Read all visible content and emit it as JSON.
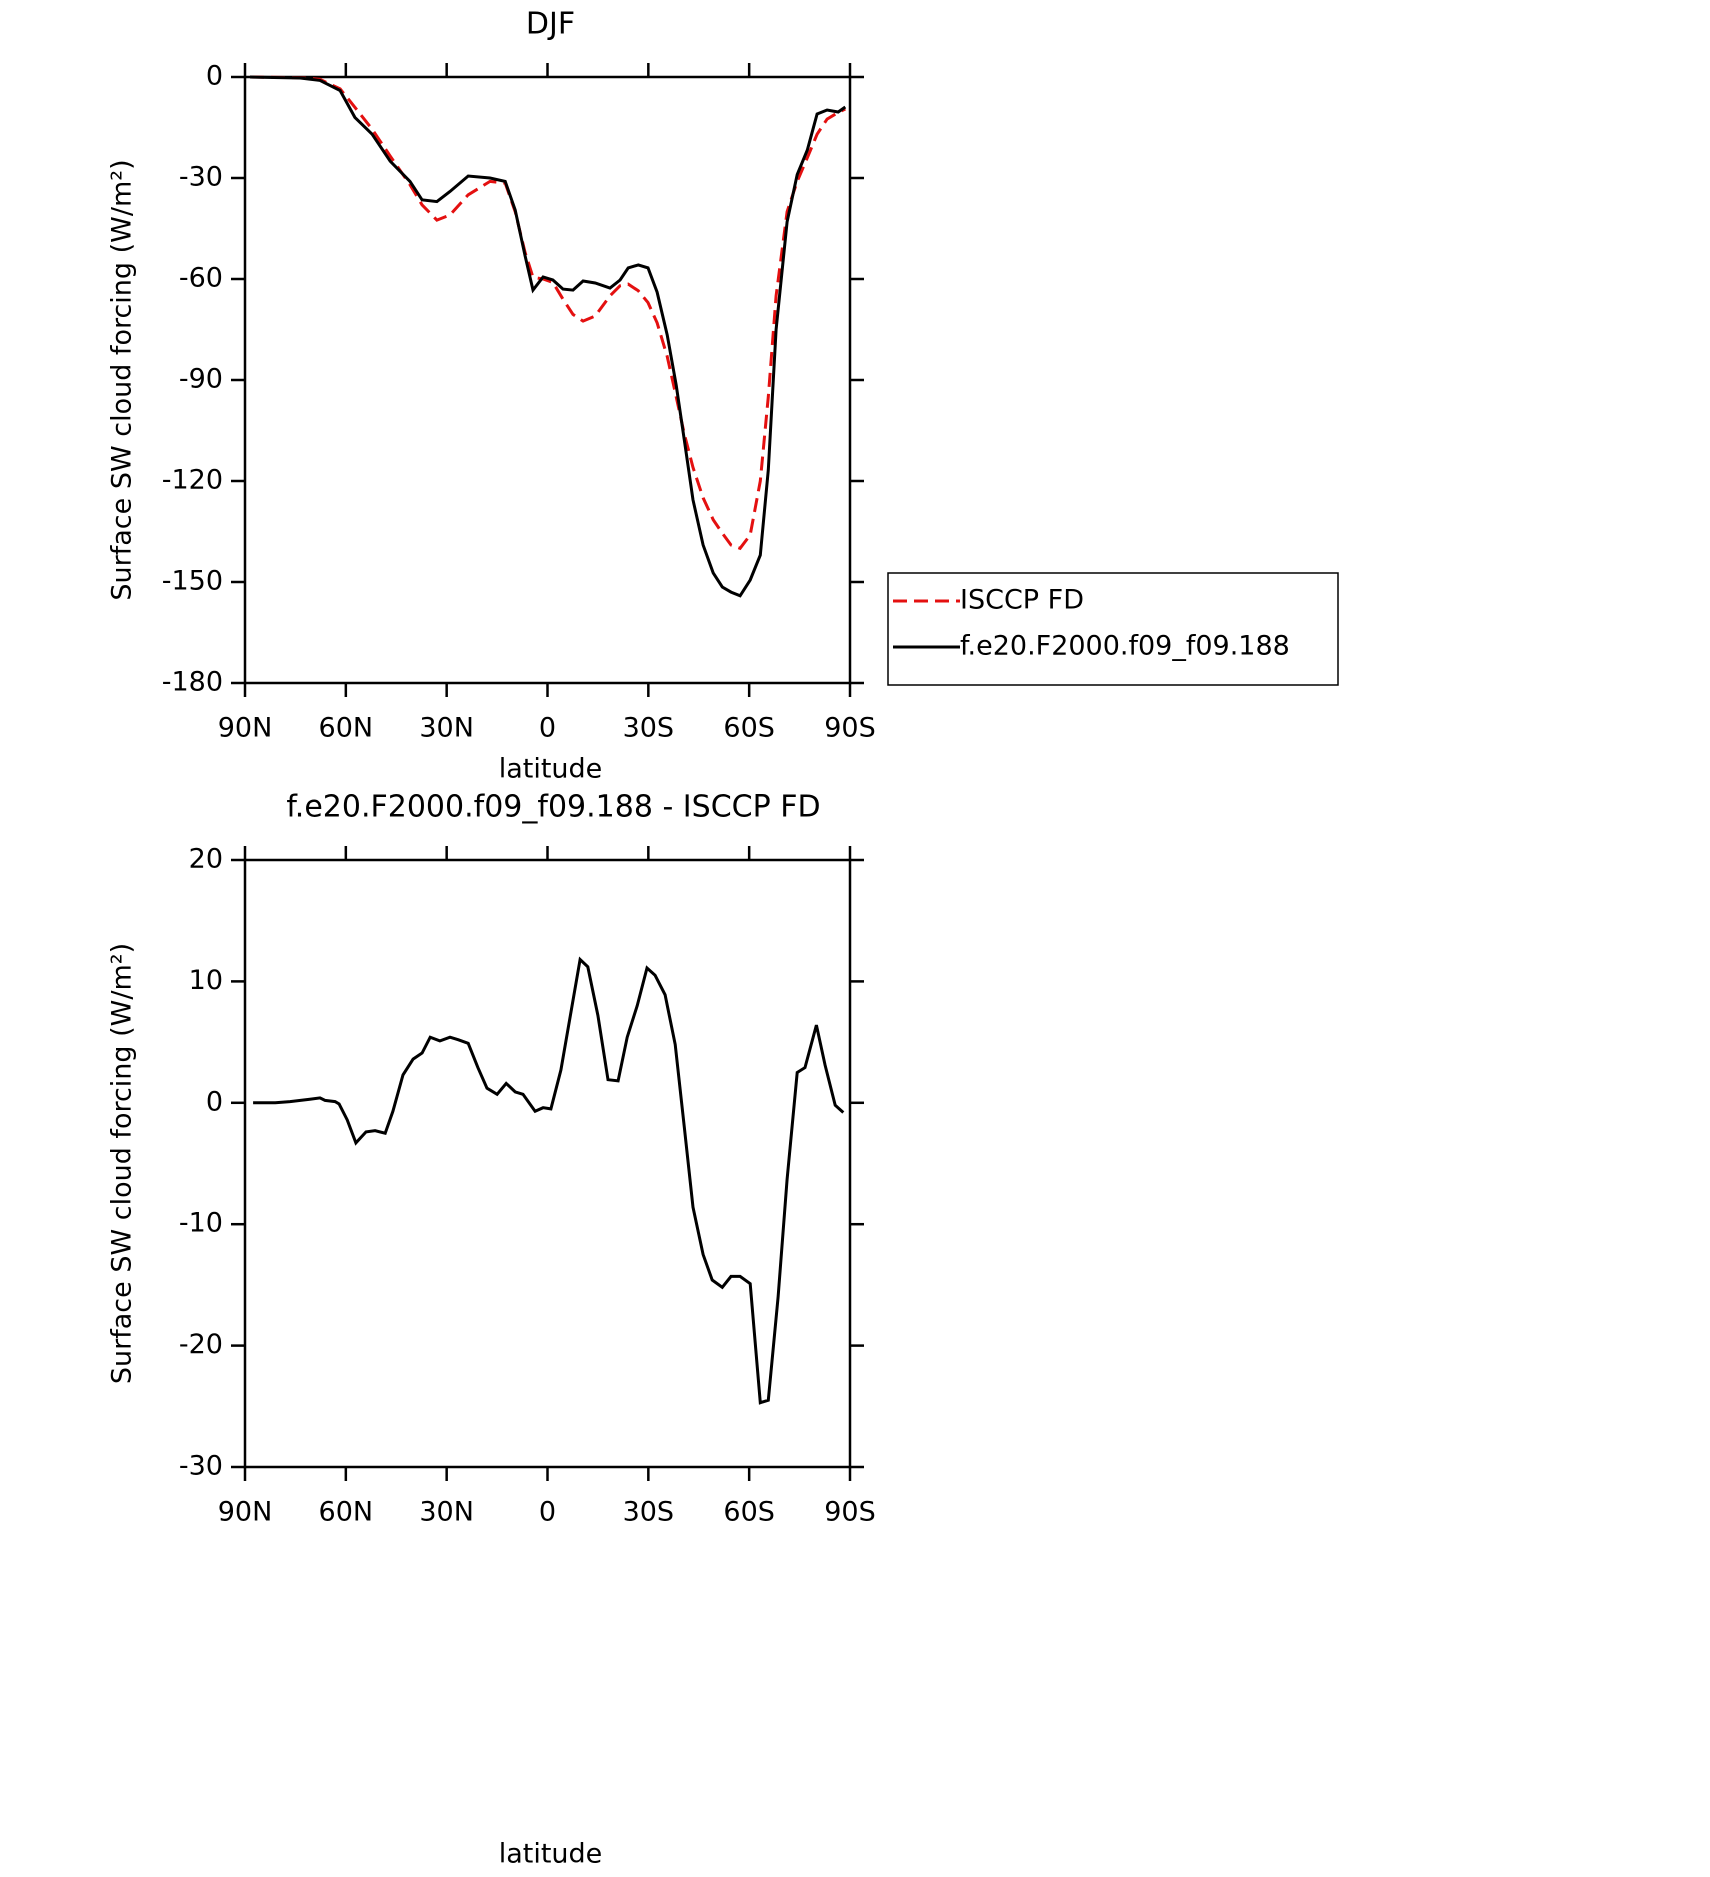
{
  "chart_data": [
    {
      "type": "line",
      "title": "DJF",
      "xlabel": "latitude",
      "ylabel": "Surface SW cloud forcing (W/m²)",
      "x": [
        88.5,
        73.6,
        67.7,
        61.7,
        57.3,
        52.2,
        46.8,
        40.9,
        37.3,
        32.9,
        29,
        23.6,
        17.1,
        12.6,
        9.6,
        6.7,
        4.3,
        1.3,
        -1.6,
        -4.6,
        -7.6,
        -10.6,
        -14.2,
        -18.6,
        -21.6,
        -24,
        -27,
        -29.9,
        -32.6,
        -35.6,
        -38.3,
        -40.7,
        -43.3,
        -46.3,
        -49.3,
        -52,
        -54.6,
        -57.3,
        -60.3,
        -63.3,
        -65.7,
        -68,
        -71.3,
        -74.3,
        -77.3,
        -80.2,
        -83.2,
        -86.5,
        -88.6
      ],
      "series": [
        {
          "name": "ISCCP FD",
          "color": "#e41010",
          "line_style": "dashed",
          "values": [
            0,
            -0.2,
            -0.7,
            -3.5,
            -9,
            -15.5,
            -23.5,
            -32,
            -38,
            -42.5,
            -41,
            -35,
            -31,
            -31.5,
            -40,
            -52,
            -59.5,
            -60,
            -61,
            -66,
            -70.5,
            -72.5,
            -71,
            -65,
            -62,
            -61.5,
            -63.5,
            -67,
            -73,
            -83,
            -95,
            -106,
            -116,
            -125,
            -131.5,
            -135.5,
            -139,
            -140,
            -136,
            -120,
            -95,
            -65,
            -40,
            -31,
            -24,
            -17,
            -12.5,
            -10.5,
            -9.5
          ]
        },
        {
          "name": "f.e20.F2000.f09_f09.188",
          "color": "#000000",
          "line_style": "solid",
          "values": [
            0,
            -0.3,
            -1,
            -4,
            -12,
            -17,
            -25,
            -31,
            -36.5,
            -37,
            -34,
            -29.4,
            -30,
            -31,
            -39.5,
            -53,
            -63.3,
            -59.4,
            -60.3,
            -63,
            -63.3,
            -60.6,
            -61.2,
            -62.7,
            -60.3,
            -56.7,
            -55.8,
            -56.7,
            -63.9,
            -76.6,
            -91.5,
            -107.8,
            -125.6,
            -139,
            -147.3,
            -151.5,
            -153,
            -154.1,
            -149.4,
            -142,
            -116.7,
            -75,
            -43,
            -29,
            -21.7,
            -11,
            -9.8,
            -10.4,
            -8.9
          ]
        }
      ],
      "xlim": [
        90,
        -90
      ],
      "xticks": [
        {
          "value": 90,
          "label": "90N"
        },
        {
          "value": 60,
          "label": "60N"
        },
        {
          "value": 30,
          "label": "30N"
        },
        0,
        {
          "value": -30,
          "label": "30S"
        },
        {
          "value": -60,
          "label": "60S"
        },
        {
          "value": -90,
          "label": "90S"
        }
      ],
      "ylim": [
        -180,
        0
      ],
      "yticks": [
        0,
        -30,
        -60,
        -90,
        -120,
        -150,
        -180
      ],
      "legend": "right"
    },
    {
      "type": "line",
      "title": "f.e20.F2000.f09_f09.188 - ISCCP FD",
      "xlabel": "latitude",
      "ylabel": "Surface SW cloud forcing (W/m²)",
      "x": [
        87.6,
        81,
        76.6,
        70.7,
        67.7,
        66.2,
        63.2,
        62,
        59.6,
        57,
        54,
        51.3,
        48.3,
        46,
        43,
        40,
        37.3,
        34.9,
        32,
        29,
        26.6,
        23.6,
        20.7,
        18,
        15,
        12.3,
        9.6,
        7.3,
        3.7,
        1.3,
        -1,
        -4,
        -9.7,
        -12,
        -15,
        -18,
        -21,
        -23.7,
        -26.7,
        -29.6,
        -32,
        -35,
        -38,
        -40.7,
        -43.3,
        -46.3,
        -49,
        -52,
        -54.6,
        -57.3,
        -60.3,
        -63.3,
        -65.7,
        -68.6,
        -71.3,
        -74.3,
        -76.6,
        -80,
        -82.6,
        -85.6,
        -88
      ],
      "color": "#000000",
      "values": [
        0,
        0,
        0.1,
        0.3,
        0.4,
        0.2,
        0.1,
        -0.1,
        -1.4,
        -3.3,
        -2.4,
        -2.3,
        -2.5,
        -0.7,
        2.3,
        3.6,
        4.1,
        5.4,
        5.1,
        5.4,
        5.2,
        4.9,
        2.9,
        1.2,
        0.7,
        1.6,
        0.9,
        0.7,
        -0.7,
        -0.4,
        -0.5,
        2.7,
        11.8,
        11.2,
        7.2,
        1.9,
        1.8,
        5.4,
        8,
        11.1,
        10.5,
        8.9,
        4.8,
        -2,
        -8.6,
        -12.5,
        -14.6,
        -15.2,
        -14.3,
        -14.3,
        -14.9,
        -24.7,
        -24.5,
        -16,
        -6.3,
        2.5,
        2.9,
        6.4,
        3.1,
        -0.2,
        -0.8
      ],
      "xlim": [
        90,
        -90
      ],
      "xticks": [
        {
          "value": 90,
          "label": "90N"
        },
        {
          "value": 60,
          "label": "60N"
        },
        {
          "value": 30,
          "label": "30N"
        },
        0,
        {
          "value": -30,
          "label": "30S"
        },
        {
          "value": -60,
          "label": "60S"
        },
        {
          "value": -90,
          "label": "90S"
        }
      ],
      "ylim": [
        -30,
        20
      ],
      "yticks": [
        20,
        10,
        0,
        -10,
        -20,
        -30
      ]
    }
  ]
}
